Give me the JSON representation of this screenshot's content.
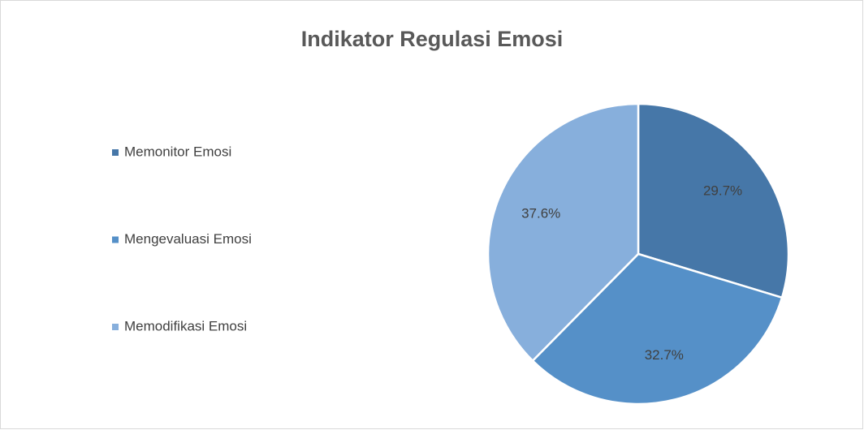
{
  "chart_data": {
    "type": "pie",
    "title": "Indikator Regulasi Emosi",
    "categories": [
      "Memonitor Emosi",
      "Mengevaluasi Emosi",
      "Memodifikasi Emosi"
    ],
    "values": [
      29.7,
      32.7,
      37.6
    ],
    "value_labels": [
      "29.7%",
      "32.7%",
      "37.6%"
    ],
    "colors": [
      "#4677a8",
      "#5590c8",
      "#87afdc"
    ],
    "legend": "left"
  }
}
